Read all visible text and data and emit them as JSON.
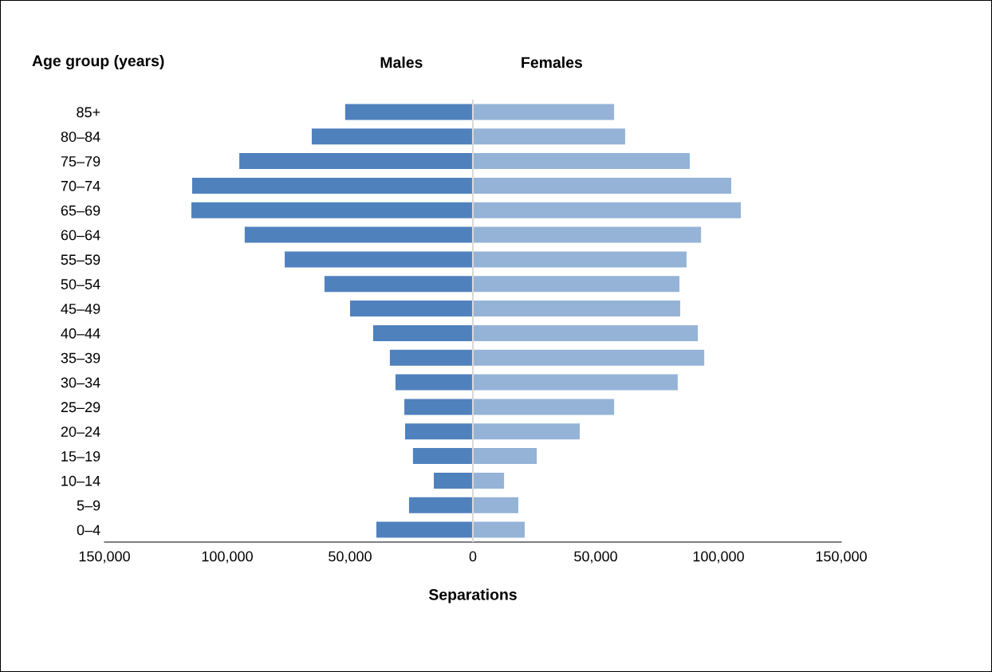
{
  "chart_data": {
    "type": "bar",
    "orientation": "horizontal",
    "ylabel": "Age group (years)",
    "xlabel": "Separations",
    "categories": [
      "85+",
      "80–84",
      "75–79",
      "70–74",
      "65–69",
      "60–64",
      "55–59",
      "50–54",
      "45–49",
      "40–44",
      "35–39",
      "30–34",
      "25–29",
      "20–24",
      "15–19",
      "10–14",
      "5–9",
      "0–4"
    ],
    "series": [
      {
        "name": "Males",
        "color": "#4f81bd",
        "values": [
          -52000,
          -65600,
          -95100,
          -114300,
          -114600,
          -92900,
          -76600,
          -60400,
          -50000,
          -40600,
          -33800,
          -31500,
          -27900,
          -27600,
          -24400,
          -15900,
          -26000,
          -39300
        ]
      },
      {
        "name": "Females",
        "color": "#95b3d7",
        "values": [
          57500,
          62000,
          88300,
          105200,
          109100,
          92900,
          87000,
          84100,
          84400,
          91600,
          94200,
          83400,
          57500,
          43500,
          26000,
          12700,
          18500,
          21100
        ]
      }
    ],
    "xlim": [
      -150000,
      150000
    ],
    "xticks": [
      {
        "value": -150000,
        "label": "150,000"
      },
      {
        "value": -100000,
        "label": "100,000"
      },
      {
        "value": -50000,
        "label": "50,000"
      },
      0,
      {
        "value": 50000,
        "label": "50,000"
      },
      {
        "value": 100000,
        "label": "100,000"
      },
      {
        "value": 150000,
        "label": "150,000"
      }
    ],
    "ref_lines": [
      {
        "axis": "x",
        "value": 0,
        "color": "#d9d9d9"
      }
    ],
    "stacked": true,
    "grid": false,
    "legend": false
  }
}
